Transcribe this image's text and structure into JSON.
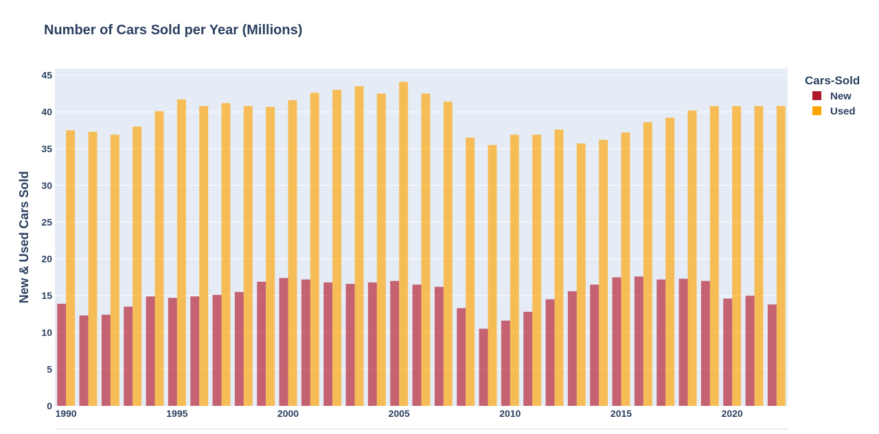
{
  "chart_data": {
    "type": "bar",
    "title": "Number of Cars Sold per Year (Millions)",
    "ylabel": "New & Used Cars Sold",
    "xlabel": "",
    "ylim": [
      0,
      45.9
    ],
    "yticks": [
      0,
      5,
      10,
      15,
      20,
      25,
      30,
      35,
      40,
      45
    ],
    "xticks": [
      1990,
      1995,
      2000,
      2005,
      2010,
      2015,
      2020
    ],
    "grid": true,
    "legend": {
      "title": "Cars-Sold",
      "placement": "right"
    },
    "categories": [
      1990,
      1991,
      1992,
      1993,
      1994,
      1995,
      1996,
      1997,
      1998,
      1999,
      2000,
      2001,
      2002,
      2003,
      2004,
      2005,
      2006,
      2007,
      2008,
      2009,
      2010,
      2011,
      2012,
      2013,
      2014,
      2015,
      2016,
      2017,
      2018,
      2019,
      2020,
      2021,
      2022
    ],
    "series": [
      {
        "name": "New",
        "color": "#b2182b",
        "values": [
          13.9,
          12.3,
          12.4,
          13.5,
          14.9,
          14.7,
          14.9,
          15.1,
          15.5,
          16.9,
          17.4,
          17.2,
          16.8,
          16.6,
          16.8,
          17.0,
          16.5,
          16.2,
          13.3,
          10.5,
          11.6,
          12.8,
          14.5,
          15.6,
          16.5,
          17.5,
          17.6,
          17.2,
          17.3,
          17.0,
          14.6,
          15.0,
          13.8
        ]
      },
      {
        "name": "Used",
        "color": "#ffa500",
        "values": [
          37.5,
          37.3,
          36.9,
          38.0,
          40.1,
          41.7,
          40.8,
          41.2,
          40.8,
          40.7,
          41.6,
          42.6,
          43.0,
          43.5,
          42.5,
          44.1,
          42.5,
          41.4,
          36.5,
          35.5,
          36.9,
          36.9,
          37.6,
          35.7,
          36.2,
          37.2,
          38.6,
          39.2,
          40.2,
          40.8,
          40.8,
          40.8,
          40.8
        ]
      }
    ]
  }
}
